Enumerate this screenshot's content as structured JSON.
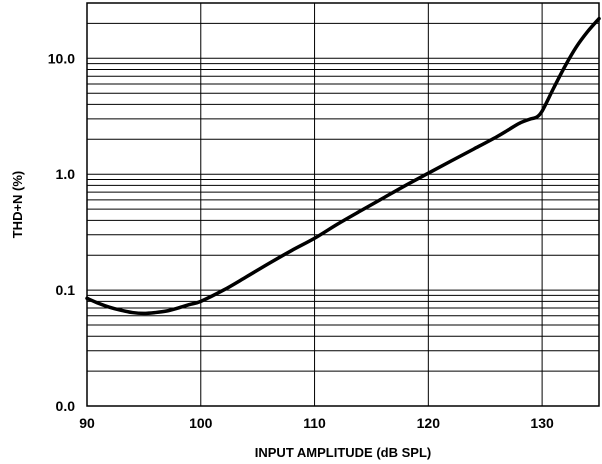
{
  "chart_data": {
    "type": "line",
    "title": "",
    "xlabel": "INPUT AMPLITUDE (dB SPL)",
    "ylabel": "THD+N (%)",
    "xlim": [
      90,
      135
    ],
    "ylim": [
      0.01,
      30
    ],
    "yscale": "log",
    "grid": true,
    "x_ticks": [
      90,
      100,
      110,
      120,
      130
    ],
    "x_tick_labels": [
      "90",
      "100",
      "110",
      "120",
      "130"
    ],
    "y_ticks": [
      0.01,
      0.1,
      1.0,
      10.0
    ],
    "y_tick_labels": [
      "0.0",
      "0.1",
      "1.0",
      "10.0"
    ],
    "line_color": "#000000",
    "series": [
      {
        "x": [
          90,
          91,
          92,
          93,
          94,
          95,
          96,
          97,
          98,
          99,
          100,
          102,
          104,
          106,
          108,
          110,
          112,
          114,
          116,
          118,
          120,
          122,
          124,
          126,
          127,
          128,
          129,
          129.5,
          130,
          131,
          132,
          133,
          134,
          135
        ],
        "y": [
          0.085,
          0.077,
          0.071,
          0.067,
          0.064,
          0.063,
          0.064,
          0.066,
          0.07,
          0.075,
          0.08,
          0.1,
          0.13,
          0.17,
          0.22,
          0.28,
          0.37,
          0.48,
          0.62,
          0.8,
          1.02,
          1.3,
          1.65,
          2.1,
          2.4,
          2.75,
          3.0,
          3.1,
          3.5,
          5.5,
          8.5,
          12.5,
          17.0,
          22.0
        ]
      }
    ]
  }
}
